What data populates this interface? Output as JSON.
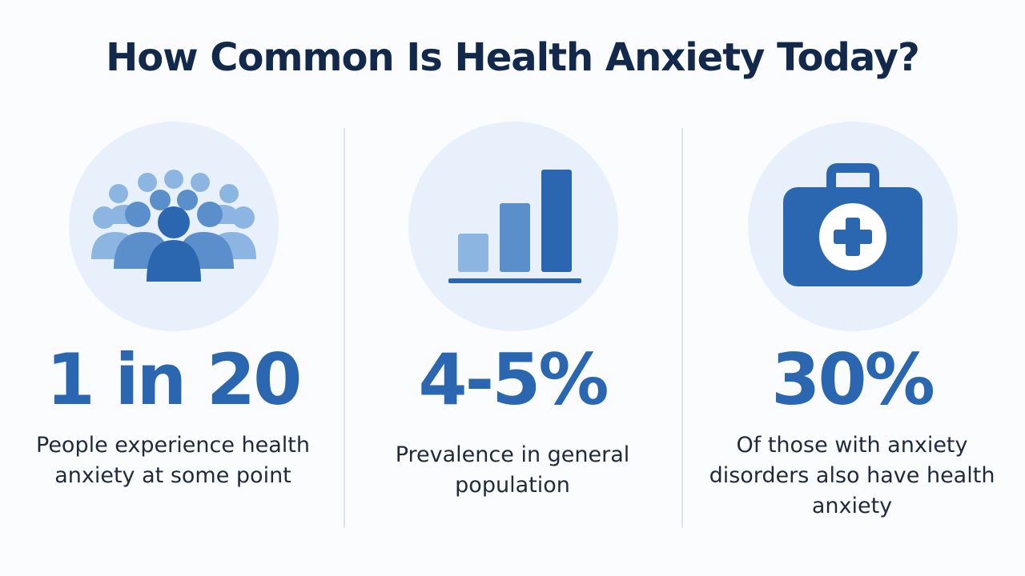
{
  "title": "How Common Is Health Anxiety Today?",
  "stats": [
    {
      "icon": "people-group-icon",
      "value": "1 in 20",
      "description": "People experience health anxiety at some point"
    },
    {
      "icon": "bar-chart-icon",
      "value": "4-5%",
      "description": "Prevalence in general population"
    },
    {
      "icon": "medical-kit-icon",
      "value": "30%",
      "description": "Of those with anxiety disorders also have health anxiety"
    }
  ],
  "colors": {
    "title": "#13294b",
    "stat": "#2b66b0",
    "icon_dark": "#2b66b0",
    "icon_mid": "#5b8fcc",
    "icon_light": "#8db5e2",
    "circle_bg": "#e8f1fb",
    "divider": "#dde4ee"
  }
}
